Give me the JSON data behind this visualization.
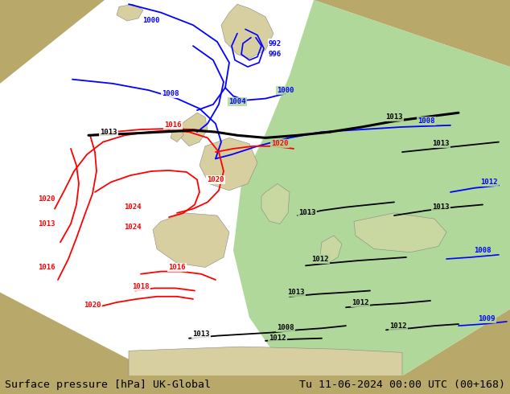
{
  "title_left": "Surface pressure [hPa] UK-Global",
  "title_right": "Tu 11-06-2024 00:00 UTC (00+168)",
  "figure_width": 6.34,
  "figure_height": 4.9,
  "dpi": 100,
  "font_size_title": 9.5,
  "bg_color": "#b8a86a",
  "white_color": "#ffffff",
  "green_color": "#b0d89a",
  "footer_bg": "#ffffff"
}
